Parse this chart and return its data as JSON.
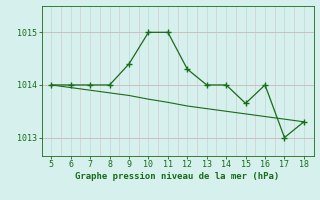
{
  "x": [
    5,
    6,
    7,
    8,
    9,
    10,
    11,
    12,
    13,
    14,
    15,
    16,
    17,
    18
  ],
  "y_main": [
    1014.0,
    1014.0,
    1014.0,
    1014.0,
    1014.4,
    1015.0,
    1015.0,
    1014.3,
    1014.0,
    1014.0,
    1013.65,
    1014.0,
    1013.0,
    1013.3
  ],
  "y_trend": [
    1014.0,
    1013.95,
    1013.9,
    1013.85,
    1013.8,
    1013.73,
    1013.67,
    1013.6,
    1013.55,
    1013.5,
    1013.45,
    1013.4,
    1013.35,
    1013.3
  ],
  "line_color": "#1a6b1a",
  "bg_color": "#d6f0ee",
  "grid_color_v": "#c8dada",
  "grid_color_h": "#c8b8b8",
  "xlabel": "Graphe pression niveau de la mer (hPa)",
  "yticks": [
    1013,
    1014,
    1015
  ],
  "xticks": [
    5,
    6,
    7,
    8,
    9,
    10,
    11,
    12,
    13,
    14,
    15,
    16,
    17,
    18
  ],
  "ylim": [
    1012.65,
    1015.5
  ],
  "xlim": [
    4.5,
    18.5
  ]
}
